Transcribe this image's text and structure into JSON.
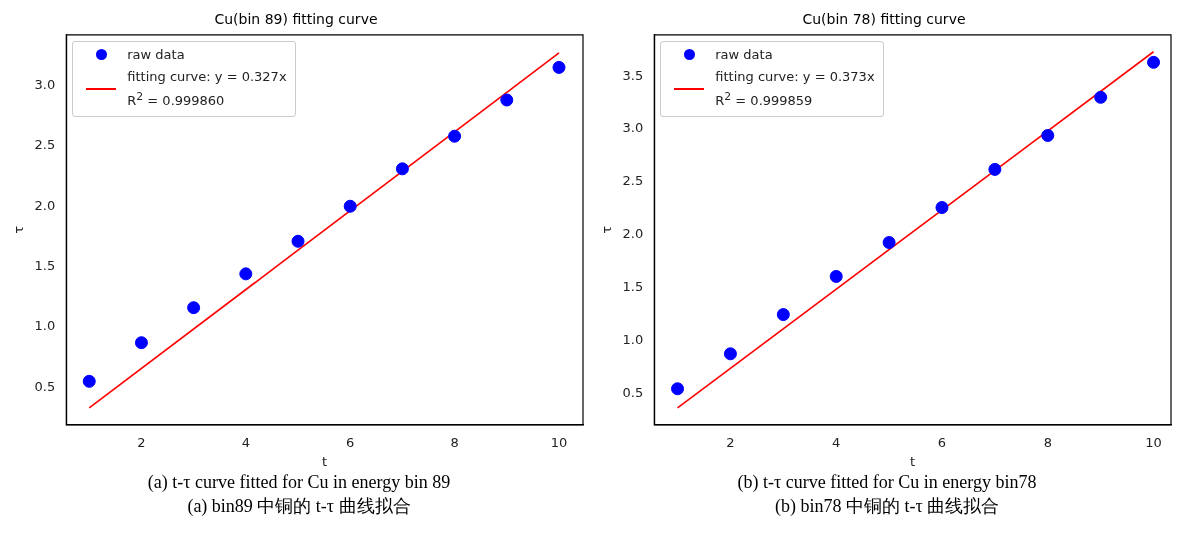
{
  "chart_data": [
    {
      "type": "scatter",
      "title": "Cu(bin 89) fitting curve",
      "xlabel": "t",
      "ylabel": "τ",
      "xlim": [
        0.56,
        10.46
      ],
      "xticks": [
        2,
        4,
        6,
        8,
        10
      ],
      "ylim": [
        0.19,
        3.42
      ],
      "yticks": [
        0.5,
        {
          "value": 1,
          "label": "1.0"
        },
        1.5,
        {
          "value": 2,
          "label": "2.0"
        },
        2.5,
        {
          "value": 3,
          "label": "3.0"
        }
      ],
      "legend": "top left",
      "grid": false,
      "series": [
        {
          "name": "raw data",
          "type": "scatter",
          "marker": "circle",
          "color": "#0000ff",
          "x": [
            1,
            2,
            3,
            4,
            5,
            6,
            7,
            8,
            9,
            10
          ],
          "values": [
            0.55,
            0.87,
            1.16,
            1.44,
            1.71,
            2.0,
            2.31,
            2.58,
            2.88,
            3.15
          ]
        },
        {
          "name": "fitting curve: y = 0.327x\nR$^{2}$ = 0.999860",
          "type": "line",
          "marker": "none",
          "line_style": "solid",
          "color": "#ff0000",
          "x": [
            1,
            10
          ],
          "values": [
            0.33,
            3.27
          ]
        }
      ],
      "annotations": [
        "(a) t-τ curve fitted for Cu in energy bin 89",
        "(a) bin89 中铜的 t-τ 曲线拟合"
      ]
    },
    {
      "type": "scatter",
      "title": "Cu(bin 78) fitting curve",
      "xlabel": "t",
      "ylabel": "τ",
      "xlim": [
        0.56,
        10.33
      ],
      "xticks": [
        2,
        4,
        6,
        8,
        10
      ],
      "ylim": [
        0.21,
        3.89
      ],
      "yticks": [
        0.5,
        {
          "value": 1,
          "label": "1.0"
        },
        1.5,
        {
          "value": 2,
          "label": "2.0"
        },
        2.5,
        {
          "value": 3,
          "label": "3.0"
        },
        3.5
      ],
      "legend": "top left",
      "grid": false,
      "series": [
        {
          "name": "raw data",
          "type": "scatter",
          "marker": "circle",
          "color": "#0000ff",
          "x": [
            1,
            2,
            3,
            4,
            5,
            6,
            7,
            8,
            9,
            10
          ],
          "values": [
            0.55,
            0.88,
            1.25,
            1.61,
            1.93,
            2.26,
            2.62,
            2.94,
            3.3,
            3.63
          ]
        },
        {
          "name": "fitting curve: y = 0.373x\nR$^{2}$ = 0.999859",
          "type": "line",
          "marker": "none",
          "line_style": "solid",
          "color": "#ff0000",
          "x": [
            1,
            10
          ],
          "values": [
            0.37,
            3.73
          ]
        }
      ],
      "annotations": [
        "(b) t-τ curve fitted for Cu in energy bin78",
        "(b) bin78 中铜的 t-τ 曲线拟合"
      ]
    }
  ]
}
